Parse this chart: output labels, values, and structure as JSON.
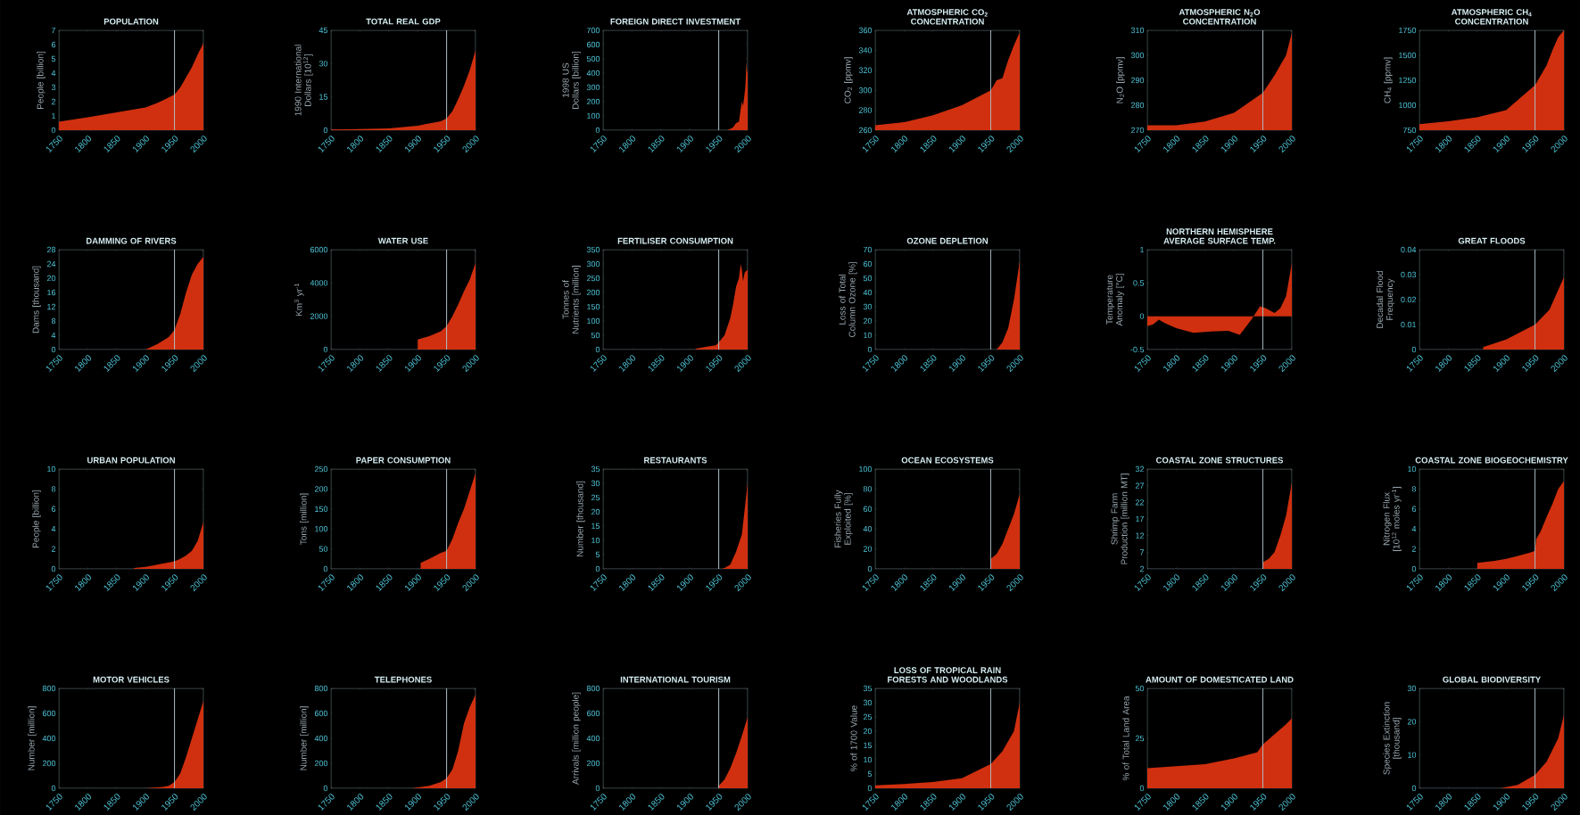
{
  "chart_data": [
    {
      "type": "area",
      "title": "POPULATION",
      "ylabel": "People [billion]",
      "x": [
        1750,
        1800,
        1850,
        1900,
        1920,
        1930,
        1950,
        1960,
        1970,
        1980,
        1990,
        2000
      ],
      "values": [
        0.6,
        0.9,
        1.25,
        1.6,
        1.9,
        2.1,
        2.5,
        3.0,
        3.7,
        4.4,
        5.3,
        6.1
      ],
      "color": "#d0300f",
      "xlim": [
        1750,
        2000
      ],
      "xticks": [
        1750,
        1800,
        1850,
        1900,
        1950,
        2000
      ],
      "ylim": [
        0,
        7
      ],
      "yticks": [
        0,
        1,
        2,
        3,
        4,
        5,
        6,
        7
      ],
      "ref_lines": [
        {
          "axis": "x",
          "value": 1950,
          "color": "#b0c4cc"
        }
      ]
    },
    {
      "type": "area",
      "title": "TOTAL REAL GDP",
      "ylabel": "1990 International Dollars [10$^{12}$]",
      "x": [
        1750,
        1800,
        1850,
        1900,
        1913,
        1930,
        1940,
        1950,
        1960,
        1970,
        1980,
        1990,
        2000
      ],
      "values": [
        0.3,
        0.5,
        0.8,
        2,
        2.7,
        3.5,
        4,
        5.3,
        8.5,
        14,
        20,
        27,
        36
      ],
      "color": "#d0300f",
      "xlim": [
        1750,
        2000
      ],
      "xticks": [
        1750,
        1800,
        1850,
        1900,
        1950,
        2000
      ],
      "ylim": [
        0,
        45
      ],
      "yticks": [
        0,
        15,
        30,
        45
      ],
      "ref_lines": [
        {
          "axis": "x",
          "value": 1950,
          "color": "#b0c4cc"
        }
      ]
    },
    {
      "type": "area",
      "title": "FOREIGN DIRECT INVESTMENT",
      "ylabel": "1998 US Dollars [billion]",
      "x": [
        1750,
        1965,
        1970,
        1975,
        1980,
        1985,
        1988,
        1990,
        1992,
        1994,
        1996,
        1997,
        1998,
        1999,
        2000
      ],
      "values": [
        0,
        0,
        10,
        20,
        50,
        60,
        150,
        200,
        170,
        230,
        300,
        380,
        480,
        400,
        430
      ],
      "color": "#d0300f",
      "xlim": [
        1750,
        2000
      ],
      "xticks": [
        1750,
        1800,
        1850,
        1900,
        1950,
        2000
      ],
      "ylim": [
        0,
        700
      ],
      "yticks": [
        0,
        100,
        200,
        300,
        400,
        500,
        600,
        700
      ],
      "ref_lines": [
        {
          "axis": "x",
          "value": 1950,
          "color": "#b0c4cc"
        }
      ]
    },
    {
      "type": "area",
      "title": "ATMOSPHERIC CO$_{2}$ CONCENTRATION",
      "ylabel": "CO$_{2}$ [ppmv]",
      "x": [
        1750,
        1800,
        1850,
        1900,
        1950,
        1960,
        1970,
        1980,
        1990,
        2000
      ],
      "values": [
        265,
        268,
        275,
        285,
        300,
        310,
        312,
        330,
        345,
        358
      ],
      "color": "#d0300f",
      "xlim": [
        1750,
        2000
      ],
      "xticks": [
        1750,
        1800,
        1850,
        1900,
        1950,
        2000
      ],
      "ylim": [
        260,
        360
      ],
      "yticks": [
        260,
        280,
        300,
        320,
        340,
        360
      ],
      "ref_lines": [
        {
          "axis": "x",
          "value": 1950,
          "color": "#b0c4cc"
        }
      ]
    },
    {
      "type": "area",
      "title": "ATMOSPHERIC N$_{2}$O CONCENTRATION",
      "ylabel": "N$_{2}$O [ppmv]",
      "x": [
        1750,
        1800,
        1850,
        1900,
        1950,
        1970,
        1990,
        2000
      ],
      "values": [
        272,
        272,
        273.5,
        277,
        285,
        292,
        300,
        309
      ],
      "color": "#d0300f",
      "xlim": [
        1750,
        2000
      ],
      "xticks": [
        1750,
        1800,
        1850,
        1900,
        1950,
        2000
      ],
      "ylim": [
        270,
        310
      ],
      "yticks": [
        270,
        280,
        290,
        300,
        310
      ],
      "ref_lines": [
        {
          "axis": "x",
          "value": 1950,
          "color": "#b0c4cc"
        }
      ]
    },
    {
      "type": "area",
      "title": "ATMOSPHERIC CH$_{4}$ CONCENTRATION",
      "ylabel": "CH$_{4}$ [ppmv]",
      "x": [
        1750,
        1800,
        1850,
        1900,
        1950,
        1970,
        1980,
        1990,
        2000
      ],
      "values": [
        810,
        840,
        880,
        950,
        1200,
        1400,
        1550,
        1680,
        1750
      ],
      "color": "#d0300f",
      "xlim": [
        1750,
        2000
      ],
      "xticks": [
        1750,
        1800,
        1850,
        1900,
        1950,
        2000
      ],
      "ylim": [
        750,
        1750
      ],
      "yticks": [
        750,
        1000,
        1250,
        1500,
        1750
      ],
      "ref_lines": [
        {
          "axis": "x",
          "value": 1950,
          "color": "#b0c4cc"
        }
      ]
    },
    {
      "type": "area",
      "title": "DAMMING OF RIVERS",
      "ylabel": "Dams [thousand]",
      "x": [
        1750,
        1900,
        1920,
        1940,
        1950,
        1960,
        1970,
        1980,
        1990,
        2000
      ],
      "values": [
        0,
        0,
        1.5,
        3.5,
        5.5,
        10,
        16,
        21,
        24,
        26
      ],
      "color": "#d0300f",
      "xlim": [
        1750,
        2000
      ],
      "xticks": [
        1750,
        1800,
        1850,
        1900,
        1950,
        2000
      ],
      "ylim": [
        0,
        28
      ],
      "yticks": [
        0,
        4,
        8,
        12,
        16,
        20,
        24,
        28
      ],
      "ref_lines": [
        {
          "axis": "x",
          "value": 1950,
          "color": "#b0c4cc"
        }
      ]
    },
    {
      "type": "area",
      "title": "WATER USE",
      "ylabel": "Km$^{3}$ yr$^{-1}$",
      "x": [
        1900,
        1920,
        1940,
        1950,
        1960,
        1970,
        1980,
        1990,
        2000
      ],
      "values": [
        600,
        800,
        1100,
        1400,
        2000,
        2700,
        3500,
        4200,
        5200
      ],
      "color": "#d0300f",
      "xlim": [
        1750,
        2000
      ],
      "xticks": [
        1750,
        1800,
        1850,
        1900,
        1950,
        2000
      ],
      "ylim": [
        0,
        6000
      ],
      "yticks": [
        0,
        2000,
        4000,
        6000
      ],
      "ref_lines": [
        {
          "axis": "x",
          "value": 1950,
          "color": "#b0c4cc"
        }
      ]
    },
    {
      "type": "area",
      "title": "FERTILISER CONSUMPTION",
      "ylabel": "Tonnes of Nutrients [million]",
      "x": [
        1910,
        1930,
        1945,
        1950,
        1960,
        1970,
        1975,
        1980,
        1985,
        1988,
        1990,
        1992,
        1995,
        2000
      ],
      "values": [
        3,
        10,
        15,
        25,
        50,
        110,
        160,
        220,
        250,
        300,
        280,
        240,
        270,
        280
      ],
      "color": "#d0300f",
      "xlim": [
        1750,
        2000
      ],
      "xticks": [
        1750,
        1800,
        1850,
        1900,
        1950,
        2000
      ],
      "ylim": [
        0,
        350
      ],
      "yticks": [
        0,
        50,
        100,
        150,
        200,
        250,
        300,
        350
      ],
      "ref_lines": [
        {
          "axis": "x",
          "value": 1950,
          "color": "#b0c4cc"
        }
      ]
    },
    {
      "type": "area",
      "title": "OZONE DEPLETION",
      "ylabel": "Loss of Total Column Ozone [%]",
      "x": [
        1960,
        1970,
        1980,
        1990,
        2000
      ],
      "values": [
        0,
        5,
        15,
        35,
        62
      ],
      "color": "#d0300f",
      "xlim": [
        1750,
        2000
      ],
      "xticks": [
        1750,
        1800,
        1850,
        1900,
        1950,
        2000
      ],
      "ylim": [
        0,
        70
      ],
      "yticks": [
        0,
        10,
        20,
        30,
        40,
        50,
        60,
        70
      ],
      "ref_lines": [
        {
          "axis": "x",
          "value": 1950,
          "color": "#b0c4cc"
        }
      ]
    },
    {
      "type": "area",
      "title": "NORTHERN HEMISPHERE AVERAGE SURFACE TEMP.",
      "ylabel": "Temperature Anomaly [°C]",
      "x": [
        1750,
        1760,
        1770,
        1780,
        1800,
        1830,
        1860,
        1890,
        1910,
        1930,
        1945,
        1955,
        1970,
        1980,
        1990,
        2000
      ],
      "values": [
        -0.15,
        -0.12,
        -0.05,
        -0.1,
        -0.18,
        -0.25,
        -0.23,
        -0.22,
        -0.28,
        -0.05,
        0.15,
        0.12,
        0.05,
        0.12,
        0.3,
        0.8
      ],
      "color": "#d0300f",
      "xlim": [
        1750,
        2000
      ],
      "xticks": [
        1750,
        1800,
        1850,
        1900,
        1950,
        2000
      ],
      "ylim": [
        -0.5,
        1
      ],
      "yticks": [
        -0.5,
        0,
        0.5,
        1
      ],
      "ref_lines": [
        {
          "axis": "x",
          "value": 1950,
          "color": "#b0c4cc"
        }
      ]
    },
    {
      "type": "area",
      "title": "GREAT FLOODS",
      "ylabel": "Decadal Flood Frequency",
      "x": [
        1860,
        1900,
        1950,
        1975,
        2000
      ],
      "values": [
        0.001,
        0.004,
        0.01,
        0.016,
        0.029
      ],
      "color": "#d0300f",
      "xlim": [
        1750,
        2000
      ],
      "xticks": [
        1750,
        1800,
        1850,
        1900,
        1950,
        2000
      ],
      "ylim": [
        0,
        0.04
      ],
      "yticks": [
        0,
        0.01,
        0.02,
        0.03,
        0.04
      ],
      "ref_lines": [
        {
          "axis": "x",
          "value": 1950,
          "color": "#b0c4cc"
        }
      ]
    },
    {
      "type": "area",
      "title": "URBAN POPULATION",
      "ylabel": "People [billion]",
      "x": [
        1880,
        1900,
        1950,
        1960,
        1970,
        1980,
        1990,
        2000
      ],
      "values": [
        0.1,
        0.2,
        0.75,
        1.0,
        1.35,
        1.8,
        2.8,
        4.7
      ],
      "color": "#d0300f",
      "xlim": [
        1750,
        2000
      ],
      "xticks": [
        1750,
        1800,
        1850,
        1900,
        1950,
        2000
      ],
      "ylim": [
        0,
        10
      ],
      "yticks": [
        0,
        2,
        4,
        6,
        8,
        10
      ],
      "ref_lines": [
        {
          "axis": "x",
          "value": 1950,
          "color": "#b0c4cc"
        }
      ]
    },
    {
      "type": "area",
      "title": "PAPER CONSUMPTION",
      "ylabel": "Tons [million]",
      "x": [
        1905,
        1920,
        1940,
        1950,
        1960,
        1970,
        1980,
        1990,
        2000
      ],
      "values": [
        15,
        25,
        40,
        45,
        75,
        115,
        150,
        195,
        240
      ],
      "color": "#d0300f",
      "xlim": [
        1750,
        2000
      ],
      "xticks": [
        1750,
        1800,
        1850,
        1900,
        1950,
        2000
      ],
      "ylim": [
        0,
        250
      ],
      "yticks": [
        0,
        50,
        100,
        150,
        200,
        250
      ],
      "ref_lines": [
        {
          "axis": "x",
          "value": 1950,
          "color": "#b0c4cc"
        }
      ]
    },
    {
      "type": "area",
      "title": "RESTAURANTS",
      "ylabel": "Number [thousand]",
      "x": [
        1955,
        1960,
        1970,
        1980,
        1990,
        2000
      ],
      "values": [
        0,
        0.3,
        1.5,
        6,
        12,
        30
      ],
      "color": "#d0300f",
      "xlim": [
        1750,
        2000
      ],
      "xticks": [
        1750,
        1800,
        1850,
        1900,
        1950,
        2000
      ],
      "ylim": [
        0,
        35
      ],
      "yticks": [
        0,
        5,
        10,
        15,
        20,
        25,
        30,
        35
      ],
      "ref_lines": [
        {
          "axis": "x",
          "value": 1950,
          "color": "#b0c4cc"
        }
      ]
    },
    {
      "type": "area",
      "title": "OCEAN ECOSYSTEMS",
      "ylabel": "Fisheries Fully Exploited [%]",
      "x": [
        1950,
        1960,
        1970,
        1980,
        1990,
        2000
      ],
      "values": [
        10,
        15,
        25,
        40,
        55,
        75
      ],
      "color": "#d0300f",
      "xlim": [
        1750,
        2000
      ],
      "xticks": [
        1750,
        1800,
        1850,
        1900,
        1950,
        2000
      ],
      "ylim": [
        0,
        100
      ],
      "yticks": [
        0,
        20,
        40,
        60,
        80,
        100
      ],
      "ref_lines": [
        {
          "axis": "x",
          "value": 1950,
          "color": "#b0c4cc"
        }
      ]
    },
    {
      "type": "area",
      "title": "COASTAL ZONE STRUCTURES",
      "ylabel": "Shrimp Farm Production [million MT]",
      "x": [
        1950,
        1960,
        1970,
        1980,
        1990,
        2000
      ],
      "values": [
        4,
        5,
        7,
        12,
        18,
        28
      ],
      "color": "#d0300f",
      "xlim": [
        1750,
        2000
      ],
      "xticks": [
        1750,
        1800,
        1850,
        1900,
        1950,
        2000
      ],
      "ylim": [
        2,
        32
      ],
      "yticks": [
        2,
        7,
        12,
        17,
        22,
        27,
        32
      ],
      "ref_lines": [
        {
          "axis": "x",
          "value": 1950,
          "color": "#b0c4cc"
        }
      ]
    },
    {
      "type": "area",
      "title": "COASTAL ZONE BIOGEOCHEMISTRY",
      "ylabel": "Nitrogen Flux [10$^{12}$ moles yr$^{-1}$]",
      "x": [
        1850,
        1880,
        1900,
        1920,
        1940,
        1950,
        1952,
        1960,
        1970,
        1980,
        1990,
        2000
      ],
      "values": [
        0.6,
        0.8,
        1.0,
        1.3,
        1.6,
        1.8,
        3.0,
        3.8,
        5.2,
        6.5,
        8,
        8.8
      ],
      "color": "#d0300f",
      "xlim": [
        1750,
        2000
      ],
      "xticks": [
        1750,
        1800,
        1850,
        1900,
        1950,
        2000
      ],
      "ylim": [
        0,
        10
      ],
      "yticks": [
        0,
        2,
        4,
        6,
        8,
        10
      ],
      "ref_lines": [
        {
          "axis": "x",
          "value": 1950,
          "color": "#b0c4cc"
        }
      ]
    },
    {
      "type": "area",
      "title": "MOTOR VEHICLES",
      "ylabel": "Number [million]",
      "x": [
        1900,
        1930,
        1940,
        1950,
        1960,
        1970,
        1980,
        1990,
        2000
      ],
      "values": [
        0,
        10,
        20,
        50,
        120,
        250,
        400,
        550,
        700
      ],
      "color": "#d0300f",
      "xlim": [
        1750,
        2000
      ],
      "xticks": [
        1750,
        1800,
        1850,
        1900,
        1950,
        2000
      ],
      "ylim": [
        0,
        800
      ],
      "yticks": [
        0,
        200,
        400,
        600,
        800
      ],
      "ref_lines": [
        {
          "axis": "x",
          "value": 1950,
          "color": "#b0c4cc"
        }
      ]
    },
    {
      "type": "area",
      "title": "TELEPHONES",
      "ylabel": "Number [million]",
      "x": [
        1890,
        1920,
        1940,
        1950,
        1960,
        1970,
        1980,
        1990,
        2000
      ],
      "values": [
        0,
        20,
        50,
        80,
        150,
        300,
        520,
        650,
        750
      ],
      "color": "#d0300f",
      "xlim": [
        1750,
        2000
      ],
      "xticks": [
        1750,
        1800,
        1850,
        1900,
        1950,
        2000
      ],
      "ylim": [
        0,
        800
      ],
      "yticks": [
        0,
        200,
        400,
        600,
        800
      ],
      "ref_lines": [
        {
          "axis": "x",
          "value": 1950,
          "color": "#b0c4cc"
        }
      ]
    },
    {
      "type": "area",
      "title": "INTERNATIONAL TOURISM",
      "ylabel": "Arrivals [million people]",
      "x": [
        1950,
        1960,
        1970,
        1980,
        1990,
        2000
      ],
      "values": [
        20,
        70,
        160,
        280,
        420,
        570
      ],
      "color": "#d0300f",
      "xlim": [
        1750,
        2000
      ],
      "xticks": [
        1750,
        1800,
        1850,
        1900,
        1950,
        2000
      ],
      "ylim": [
        0,
        800
      ],
      "yticks": [
        0,
        200,
        400,
        600,
        800
      ],
      "ref_lines": [
        {
          "axis": "x",
          "value": 1950,
          "color": "#b0c4cc"
        }
      ]
    },
    {
      "type": "area",
      "title": "LOSS OF TROPICAL RAIN FORESTS AND WOODLANDS",
      "ylabel": "% of 1700 Value",
      "x": [
        1750,
        1800,
        1850,
        1900,
        1950,
        1970,
        1990,
        2000
      ],
      "values": [
        1,
        1.5,
        2.2,
        3.5,
        8.5,
        13,
        20,
        30
      ],
      "color": "#d0300f",
      "xlim": [
        1750,
        2000
      ],
      "xticks": [
        1750,
        1800,
        1850,
        1900,
        1950,
        2000
      ],
      "ylim": [
        0,
        35
      ],
      "yticks": [
        0,
        5,
        10,
        15,
        20,
        25,
        30,
        35
      ],
      "ref_lines": [
        {
          "axis": "x",
          "value": 1950,
          "color": "#b0c4cc"
        }
      ]
    },
    {
      "type": "area",
      "title": "AMOUNT OF DOMESTICATED LAND",
      "ylabel": "% of Total Land Area",
      "x": [
        1750,
        1800,
        1850,
        1900,
        1940,
        1950,
        1990,
        2000
      ],
      "values": [
        10,
        11,
        12,
        15,
        18,
        22,
        32,
        35
      ],
      "color": "#d0300f",
      "xlim": [
        1750,
        2000
      ],
      "xticks": [
        1750,
        1800,
        1850,
        1900,
        1950,
        2000
      ],
      "ylim": [
        0,
        50
      ],
      "yticks": [
        0,
        25,
        50
      ],
      "ref_lines": [
        {
          "axis": "x",
          "value": 1950,
          "color": "#b0c4cc"
        }
      ]
    },
    {
      "type": "area",
      "title": "GLOBAL BIODIVERSITY",
      "ylabel": "Species Extinction [thousand]",
      "x": [
        1890,
        1920,
        1950,
        1970,
        1990,
        2000
      ],
      "values": [
        0,
        1,
        4,
        8,
        15,
        22
      ],
      "color": "#d0300f",
      "xlim": [
        1750,
        2000
      ],
      "xticks": [
        1750,
        1800,
        1850,
        1900,
        1950,
        2000
      ],
      "ylim": [
        0,
        30
      ],
      "yticks": [
        0,
        10,
        20,
        30
      ],
      "ref_lines": [
        {
          "axis": "x",
          "value": 1950,
          "color": "#b0c4cc"
        }
      ]
    }
  ]
}
